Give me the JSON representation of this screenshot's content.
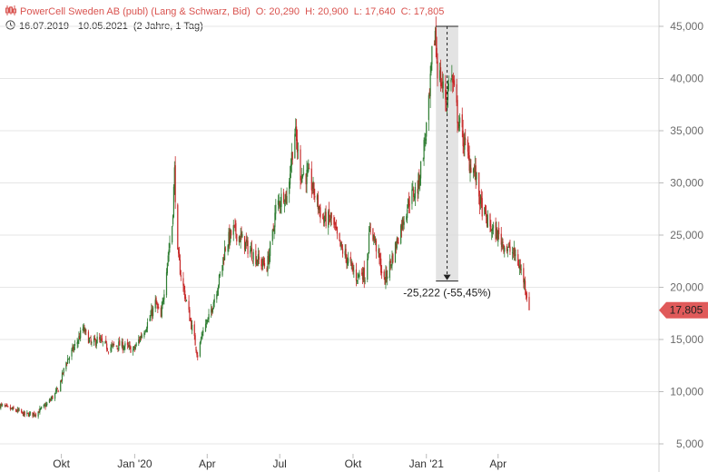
{
  "header": {
    "title": "PowerCell Sweden AB (publ) (Lang & Schwarz, Bid)",
    "open": "O: 20,290",
    "high": "H: 20,900",
    "low": "L: 17,640",
    "close": "C: 17,805",
    "date_range": "16.07.2019 - 10.05.2021",
    "period": "(2 Jahre, 1 Tag)",
    "icons": [
      "candlestick-icon",
      "clock-icon"
    ]
  },
  "colors": {
    "up": "#2e7d32",
    "down": "#c62828",
    "accent": "#e05a5a",
    "grid": "#e6e6e6",
    "axis": "#cccccc"
  },
  "chart_data": {
    "type": "candlestick",
    "title": "PowerCell Sweden AB (publ) (Lang & Schwarz, Bid)",
    "ylim": [
      3000,
      47000
    ],
    "y_ticks": [
      5000,
      10000,
      15000,
      20000,
      25000,
      30000,
      35000,
      40000,
      45000
    ],
    "y_tick_labels": [
      "5,000",
      "10,000",
      "15,000",
      "20,000",
      "25,000",
      "30,000",
      "35,000",
      "40,000",
      "45,000"
    ],
    "x_range": [
      "2019-07-16",
      "2021-05-10"
    ],
    "x_ticks": [
      {
        "date": "2019-10-01",
        "label": "Okt"
      },
      {
        "date": "2020-01-01",
        "label": "Jan '20"
      },
      {
        "date": "2020-04-01",
        "label": "Apr"
      },
      {
        "date": "2020-07-01",
        "label": "Jul"
      },
      {
        "date": "2020-10-01",
        "label": "Okt"
      },
      {
        "date": "2021-01-01",
        "label": "Jan '21"
      },
      {
        "date": "2021-04-01",
        "label": "Apr"
      }
    ],
    "series": [
      {
        "x": [
          "2019-07-16",
          "2019-07-26",
          "2019-08-09",
          "2019-08-16",
          "2019-08-30",
          "2019-09-13",
          "2019-09-27",
          "2019-10-07",
          "2019-10-21",
          "2019-10-28",
          "2019-11-01",
          "2019-11-08",
          "2019-11-15",
          "2019-11-29",
          "2019-12-13",
          "2019-12-31",
          "2020-01-10",
          "2020-01-20",
          "2020-01-27",
          "2020-02-03",
          "2020-02-10",
          "2020-02-17",
          "2020-02-20",
          "2020-02-24",
          "2020-03-02",
          "2020-03-09",
          "2020-03-16",
          "2020-03-20",
          "2020-03-27",
          "2020-04-03",
          "2020-04-10",
          "2020-04-17",
          "2020-04-24",
          "2020-05-04",
          "2020-05-15",
          "2020-05-25",
          "2020-06-05",
          "2020-06-15",
          "2020-06-22",
          "2020-06-26",
          "2020-07-06",
          "2020-07-10",
          "2020-07-15",
          "2020-07-20",
          "2020-07-27",
          "2020-08-07",
          "2020-08-24",
          "2020-09-04",
          "2020-09-14",
          "2020-09-25",
          "2020-10-05",
          "2020-10-12",
          "2020-10-16",
          "2020-10-23",
          "2020-11-02",
          "2020-11-09",
          "2020-11-20",
          "2020-12-01",
          "2020-12-11",
          "2020-12-21",
          "2020-12-30",
          "2021-01-05",
          "2021-01-08",
          "2021-01-12",
          "2021-01-15",
          "2021-01-20",
          "2021-01-26",
          "2021-02-01",
          "2021-02-05",
          "2021-02-10",
          "2021-02-17",
          "2021-02-24",
          "2021-03-03",
          "2021-03-10",
          "2021-03-17",
          "2021-03-24",
          "2021-04-01",
          "2021-04-09",
          "2021-04-16",
          "2021-04-23",
          "2021-04-30",
          "2021-05-05",
          "2021-05-10"
        ],
        "close": [
          8700,
          8400,
          8100,
          7800,
          7900,
          8800,
          10200,
          12800,
          14800,
          16000,
          15500,
          14500,
          15000,
          14200,
          14500,
          14000,
          15500,
          17000,
          18500,
          17000,
          22000,
          26000,
          31000,
          23000,
          20000,
          17500,
          15000,
          13500,
          16000,
          17000,
          19000,
          21000,
          24000,
          25500,
          24500,
          23500,
          22500,
          22000,
          25000,
          27500,
          29000,
          28500,
          32000,
          35000,
          31000,
          30500,
          26500,
          26500,
          24000,
          22500,
          21000,
          21500,
          21000,
          26000,
          23000,
          20500,
          23000,
          26000,
          28500,
          29500,
          34000,
          38000,
          42000,
          44500,
          41000,
          39500,
          38000,
          40500,
          38500,
          36000,
          34000,
          32000,
          31000,
          28000,
          26500,
          25500,
          25000,
          24000,
          23500,
          23000,
          21500,
          20200,
          17805
        ]
      }
    ],
    "last_close": 17805,
    "last_close_label": "17,805",
    "annotation": {
      "label": "-25,222 (-55,45%)",
      "from_date": "2021-01-13",
      "to_date": "2021-02-10",
      "from_value": 45000,
      "to_value": 20600
    }
  }
}
